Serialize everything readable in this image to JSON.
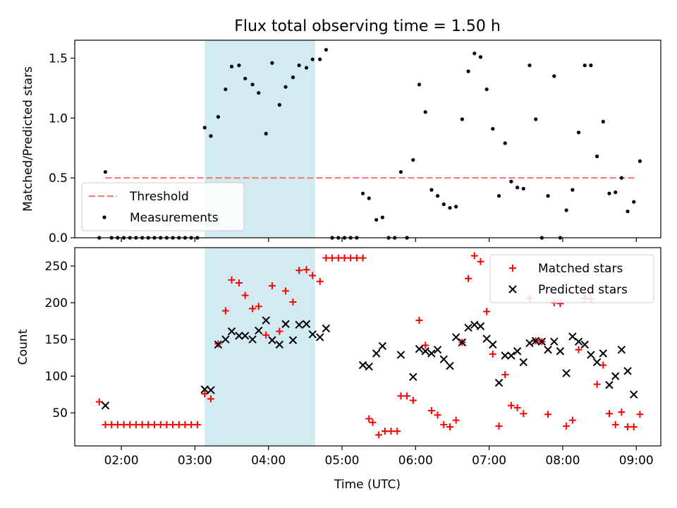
{
  "chart_data": [
    {
      "type": "scatter",
      "title": "Flux total observing time = 1.50 h",
      "xlabel": "",
      "ylabel": "Matched/Predicted stars",
      "xlim": [
        "01:22",
        "09:20"
      ],
      "ylim": [
        0,
        1.65
      ],
      "yticks": [
        0.0,
        0.5,
        1.0,
        1.5
      ],
      "ytick_labels": [
        "0.0",
        "0.5",
        "1.0",
        "1.5"
      ],
      "xticks": [
        "02:00",
        "03:00",
        "04:00",
        "05:00",
        "06:00",
        "07:00",
        "08:00",
        "09:00"
      ],
      "shaded_span": [
        "03:08",
        "04:38"
      ],
      "shaded_color": "#add8e6",
      "grid": false,
      "legend": "lower-left",
      "threshold": {
        "name": "Threshold",
        "value": 0.5,
        "x": [
          "01:47",
          "09:00"
        ],
        "color": "#f08080"
      },
      "series": [
        {
          "name": "Measurements",
          "color": "#000000",
          "points": [
            [
              "01:42",
              0.0
            ],
            [
              "01:47",
              0.55
            ],
            [
              "01:52",
              0.0
            ],
            [
              "01:57",
              0.0
            ],
            [
              "02:02",
              0.0
            ],
            [
              "02:07",
              0.0
            ],
            [
              "02:12",
              0.0
            ],
            [
              "02:17",
              0.0
            ],
            [
              "02:22",
              0.0
            ],
            [
              "02:27",
              0.0
            ],
            [
              "02:32",
              0.0
            ],
            [
              "02:37",
              0.0
            ],
            [
              "02:42",
              0.0
            ],
            [
              "02:47",
              0.0
            ],
            [
              "02:52",
              0.0
            ],
            [
              "02:57",
              0.0
            ],
            [
              "03:02",
              0.0
            ],
            [
              "03:08",
              0.92
            ],
            [
              "03:13",
              0.85
            ],
            [
              "03:19",
              1.01
            ],
            [
              "03:25",
              1.24
            ],
            [
              "03:30",
              1.43
            ],
            [
              "03:36",
              1.44
            ],
            [
              "03:41",
              1.33
            ],
            [
              "03:47",
              1.28
            ],
            [
              "03:52",
              1.21
            ],
            [
              "03:58",
              0.87
            ],
            [
              "04:03",
              1.46
            ],
            [
              "04:09",
              1.11
            ],
            [
              "04:14",
              1.26
            ],
            [
              "04:20",
              1.34
            ],
            [
              "04:25",
              1.44
            ],
            [
              "04:31",
              1.42
            ],
            [
              "04:36",
              1.49
            ],
            [
              "04:42",
              1.49
            ],
            [
              "04:47",
              1.57
            ],
            [
              "04:52",
              0.0
            ],
            [
              "04:57",
              0.0
            ],
            [
              "05:02",
              0.0
            ],
            [
              "05:07",
              0.0
            ],
            [
              "05:12",
              0.0
            ],
            [
              "05:17",
              0.37
            ],
            [
              "05:22",
              0.33
            ],
            [
              "05:28",
              0.15
            ],
            [
              "05:33",
              0.17
            ],
            [
              "05:38",
              0.0
            ],
            [
              "05:43",
              0.0
            ],
            [
              "05:48",
              0.55
            ],
            [
              "05:53",
              0.0
            ],
            [
              "05:58",
              0.65
            ],
            [
              "06:03",
              1.28
            ],
            [
              "06:08",
              1.05
            ],
            [
              "06:13",
              0.4
            ],
            [
              "06:18",
              0.35
            ],
            [
              "06:23",
              0.28
            ],
            [
              "06:28",
              0.25
            ],
            [
              "06:33",
              0.26
            ],
            [
              "06:38",
              0.99
            ],
            [
              "06:43",
              1.39
            ],
            [
              "06:48",
              1.54
            ],
            [
              "06:53",
              1.51
            ],
            [
              "06:58",
              1.24
            ],
            [
              "07:03",
              0.91
            ],
            [
              "07:08",
              0.35
            ],
            [
              "07:13",
              0.79
            ],
            [
              "07:18",
              0.47
            ],
            [
              "07:23",
              0.42
            ],
            [
              "07:28",
              0.41
            ],
            [
              "07:33",
              1.44
            ],
            [
              "07:38",
              0.99
            ],
            [
              "07:43",
              0.0
            ],
            [
              "07:48",
              0.35
            ],
            [
              "07:53",
              1.35
            ],
            [
              "07:58",
              0.0
            ],
            [
              "08:03",
              0.23
            ],
            [
              "08:08",
              0.4
            ],
            [
              "08:13",
              0.88
            ],
            [
              "08:18",
              1.44
            ],
            [
              "08:23",
              1.44
            ],
            [
              "08:28",
              0.68
            ],
            [
              "08:33",
              0.97
            ],
            [
              "08:38",
              0.37
            ],
            [
              "08:43",
              0.38
            ],
            [
              "08:48",
              0.5
            ],
            [
              "08:53",
              0.22
            ],
            [
              "08:58",
              0.3
            ],
            [
              "09:03",
              0.64
            ]
          ]
        }
      ]
    },
    {
      "type": "scatter",
      "title": "",
      "xlabel": "Time (UTC)",
      "ylabel": "Count",
      "xlim": [
        "01:22",
        "09:20"
      ],
      "ylim": [
        5,
        275
      ],
      "yticks": [
        50,
        100,
        150,
        200,
        250
      ],
      "ytick_labels": [
        "50",
        "100",
        "150",
        "200",
        "250"
      ],
      "xticks": [
        "02:00",
        "03:00",
        "04:00",
        "05:00",
        "06:00",
        "07:00",
        "08:00",
        "09:00"
      ],
      "xtick_labels": [
        "02:00",
        "03:00",
        "04:00",
        "05:00",
        "06:00",
        "07:00",
        "08:00",
        "09:00"
      ],
      "shaded_span": [
        "03:08",
        "04:38"
      ],
      "shaded_color": "#add8e6",
      "grid": false,
      "legend": "upper-right",
      "series": [
        {
          "name": "Matched stars",
          "marker": "plus",
          "color": "#ff0000",
          "points": [
            [
              "01:42",
              65
            ],
            [
              "01:47",
              34
            ],
            [
              "01:52",
              34
            ],
            [
              "01:57",
              34
            ],
            [
              "02:02",
              34
            ],
            [
              "02:07",
              34
            ],
            [
              "02:12",
              34
            ],
            [
              "02:17",
              34
            ],
            [
              "02:22",
              34
            ],
            [
              "02:27",
              34
            ],
            [
              "02:32",
              34
            ],
            [
              "02:37",
              34
            ],
            [
              "02:42",
              34
            ],
            [
              "02:47",
              34
            ],
            [
              "02:52",
              34
            ],
            [
              "02:57",
              34
            ],
            [
              "03:02",
              34
            ],
            [
              "03:08",
              76
            ],
            [
              "03:13",
              69
            ],
            [
              "03:19",
              144
            ],
            [
              "03:25",
              189
            ],
            [
              "03:30",
              231
            ],
            [
              "03:36",
              227
            ],
            [
              "03:41",
              210
            ],
            [
              "03:47",
              192
            ],
            [
              "03:52",
              195
            ],
            [
              "03:58",
              156
            ],
            [
              "04:03",
              223
            ],
            [
              "04:09",
              161
            ],
            [
              "04:14",
              216
            ],
            [
              "04:20",
              201
            ],
            [
              "04:25",
              244
            ],
            [
              "04:31",
              245
            ],
            [
              "04:36",
              237
            ],
            [
              "04:42",
              229
            ],
            [
              "04:47",
              261
            ],
            [
              "04:52",
              261
            ],
            [
              "04:57",
              261
            ],
            [
              "05:02",
              261
            ],
            [
              "05:07",
              261
            ],
            [
              "05:12",
              261
            ],
            [
              "05:17",
              261
            ],
            [
              "05:22",
              42
            ],
            [
              "05:25",
              37
            ],
            [
              "05:30",
              20
            ],
            [
              "05:35",
              25
            ],
            [
              "05:40",
              25
            ],
            [
              "05:45",
              25
            ],
            [
              "05:48",
              73
            ],
            [
              "05:53",
              73
            ],
            [
              "05:58",
              67
            ],
            [
              "06:03",
              176
            ],
            [
              "06:08",
              142
            ],
            [
              "06:13",
              53
            ],
            [
              "06:18",
              47
            ],
            [
              "06:23",
              34
            ],
            [
              "06:28",
              31
            ],
            [
              "06:33",
              40
            ],
            [
              "06:38",
              146
            ],
            [
              "06:43",
              233
            ],
            [
              "06:48",
              264
            ],
            [
              "06:53",
              256
            ],
            [
              "06:58",
              188
            ],
            [
              "07:03",
              130
            ],
            [
              "07:08",
              32
            ],
            [
              "07:13",
              102
            ],
            [
              "07:18",
              60
            ],
            [
              "07:23",
              57
            ],
            [
              "07:28",
              49
            ],
            [
              "07:33",
              206
            ],
            [
              "07:38",
              148
            ],
            [
              "07:43",
              147
            ],
            [
              "07:48",
              48
            ],
            [
              "07:53",
              200
            ],
            [
              "07:58",
              199
            ],
            [
              "08:03",
              32
            ],
            [
              "08:08",
              40
            ],
            [
              "08:13",
              136
            ],
            [
              "08:18",
              206
            ],
            [
              "08:23",
              205
            ],
            [
              "08:28",
              89
            ],
            [
              "08:33",
              115
            ],
            [
              "08:38",
              49
            ],
            [
              "08:43",
              34
            ],
            [
              "08:48",
              51
            ],
            [
              "08:53",
              31
            ],
            [
              "08:58",
              31
            ],
            [
              "09:03",
              48
            ]
          ]
        },
        {
          "name": "Predicted stars",
          "marker": "x",
          "color": "#000000",
          "points": [
            [
              "01:47",
              60
            ],
            [
              "03:08",
              82
            ],
            [
              "03:13",
              81
            ],
            [
              "03:19",
              143
            ],
            [
              "03:25",
              150
            ],
            [
              "03:30",
              161
            ],
            [
              "03:36",
              155
            ],
            [
              "03:41",
              155
            ],
            [
              "03:47",
              150
            ],
            [
              "03:52",
              162
            ],
            [
              "03:58",
              176
            ],
            [
              "04:03",
              149
            ],
            [
              "04:09",
              143
            ],
            [
              "04:14",
              171
            ],
            [
              "04:20",
              149
            ],
            [
              "04:25",
              170
            ],
            [
              "04:31",
              171
            ],
            [
              "04:36",
              157
            ],
            [
              "04:42",
              153
            ],
            [
              "04:47",
              165
            ],
            [
              "05:17",
              115
            ],
            [
              "05:22",
              113
            ],
            [
              "05:28",
              131
            ],
            [
              "05:33",
              141
            ],
            [
              "05:48",
              129
            ],
            [
              "05:58",
              99
            ],
            [
              "06:03",
              137
            ],
            [
              "06:08",
              134
            ],
            [
              "06:13",
              131
            ],
            [
              "06:18",
              136
            ],
            [
              "06:23",
              123
            ],
            [
              "06:28",
              114
            ],
            [
              "06:33",
              153
            ],
            [
              "06:38",
              146
            ],
            [
              "06:43",
              166
            ],
            [
              "06:48",
              170
            ],
            [
              "06:53",
              168
            ],
            [
              "06:58",
              151
            ],
            [
              "07:03",
              143
            ],
            [
              "07:08",
              91
            ],
            [
              "07:13",
              128
            ],
            [
              "07:18",
              128
            ],
            [
              "07:23",
              134
            ],
            [
              "07:28",
              119
            ],
            [
              "07:33",
              145
            ],
            [
              "07:38",
              148
            ],
            [
              "07:43",
              147
            ],
            [
              "07:48",
              136
            ],
            [
              "07:53",
              147
            ],
            [
              "07:58",
              134
            ],
            [
              "08:03",
              104
            ],
            [
              "08:08",
              154
            ],
            [
              "08:13",
              147
            ],
            [
              "08:18",
              143
            ],
            [
              "08:23",
              129
            ],
            [
              "08:28",
              119
            ],
            [
              "08:33",
              131
            ],
            [
              "08:38",
              88
            ],
            [
              "08:43",
              100
            ],
            [
              "08:48",
              136
            ],
            [
              "08:53",
              107
            ],
            [
              "08:58",
              75
            ]
          ]
        }
      ]
    }
  ]
}
